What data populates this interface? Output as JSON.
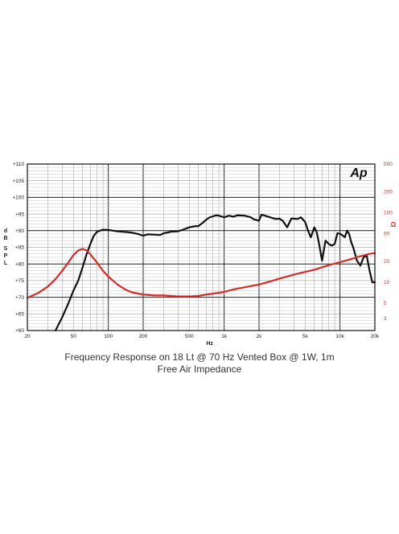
{
  "chart_data": {
    "type": "line",
    "logo": "Ap",
    "caption_line1": "Frequency Response on 18 Lt @ 70 Hz Vented Box @ 1W, 1m",
    "caption_line2": "Free Air Impedance",
    "xlabel": "Hz",
    "ylabel_left": "dB SPL",
    "ylabel_right": "Ω",
    "x_scale": "log",
    "xlim": [
      20,
      20000
    ],
    "ylim_left": [
      60,
      110
    ],
    "ylim_right": [
      2,
      500
    ],
    "y2_scale": "log",
    "grid": true,
    "x_ticks": [
      {
        "value": 20,
        "label": "20"
      },
      {
        "value": 50,
        "label": "50"
      },
      {
        "value": 100,
        "label": "100"
      },
      {
        "value": 200,
        "label": "200"
      },
      {
        "value": 500,
        "label": "500"
      },
      {
        "value": 1000,
        "label": "1k"
      },
      {
        "value": 2000,
        "label": "2k"
      },
      {
        "value": 5000,
        "label": "5k"
      },
      {
        "value": 10000,
        "label": "10k"
      },
      {
        "value": 20000,
        "label": "20k"
      }
    ],
    "y_ticks_left": [
      {
        "value": 110,
        "label": "+110"
      },
      {
        "value": 105,
        "label": "+105"
      },
      {
        "value": 100,
        "label": "+100"
      },
      {
        "value": 95,
        "label": "+95"
      },
      {
        "value": 90,
        "label": "+90"
      },
      {
        "value": 85,
        "label": "+85"
      },
      {
        "value": 80,
        "label": "+80"
      },
      {
        "value": 75,
        "label": "+75"
      },
      {
        "value": 70,
        "label": "+70"
      },
      {
        "value": 65,
        "label": "+65"
      },
      {
        "value": 60,
        "label": "+60"
      }
    ],
    "y_ticks_right": [
      {
        "value": 500,
        "label": "500"
      },
      {
        "value": 200,
        "label": "200"
      },
      {
        "value": 100,
        "label": "100"
      },
      {
        "value": 50,
        "label": "50"
      },
      {
        "value": 20,
        "label": "20"
      },
      {
        "value": 10,
        "label": "10"
      },
      {
        "value": 5,
        "label": "5"
      },
      {
        "value": 3,
        "label": "3"
      }
    ],
    "series": [
      {
        "axis": "left",
        "color": "#111111",
        "x": [
          35,
          40,
          45,
          50,
          55,
          60,
          65,
          70,
          75,
          80,
          90,
          100,
          110,
          120,
          140,
          160,
          180,
          200,
          220,
          250,
          280,
          300,
          350,
          400,
          450,
          500,
          550,
          600,
          650,
          700,
          750,
          800,
          850,
          900,
          1000,
          1100,
          1200,
          1300,
          1500,
          1700,
          1800,
          2000,
          2100,
          2200,
          2400,
          2600,
          2800,
          3000,
          3200,
          3500,
          3800,
          4000,
          4300,
          4600,
          5000,
          5300,
          5600,
          6000,
          6300,
          6600,
          7000,
          7500,
          8000,
          8500,
          9000,
          9500,
          10000,
          10500,
          11000,
          11500,
          12000,
          12500,
          13000,
          14000,
          15000,
          16000,
          17000,
          18000,
          19000,
          20000
        ],
        "y": [
          60,
          64,
          68,
          72,
          75,
          79,
          83,
          86,
          88.5,
          89.7,
          90.3,
          90.2,
          90.0,
          89.8,
          89.6,
          89.4,
          89.0,
          88.5,
          88.9,
          88.8,
          88.7,
          89.2,
          89.7,
          89.8,
          90.4,
          91.0,
          91.3,
          91.4,
          92.3,
          93.3,
          94.0,
          94.3,
          94.6,
          94.5,
          94.0,
          94.5,
          94.2,
          94.6,
          94.5,
          94.0,
          93.4,
          93.0,
          94.8,
          94.6,
          94.2,
          93.8,
          93.5,
          93.6,
          93.0,
          91.0,
          93.6,
          93.6,
          93.5,
          94.0,
          92.6,
          90.0,
          88.0,
          91.0,
          89.5,
          86.0,
          81.0,
          87.0,
          86.0,
          85.5,
          86.0,
          89.2,
          89.1,
          88.6,
          88.0,
          90.0,
          89.0,
          86.5,
          85.0,
          81.0,
          79.5,
          82.0,
          82.5,
          78.0,
          74.5,
          74.5
        ]
      },
      {
        "axis": "right",
        "color": "#d42b2b",
        "x": [
          20,
          25,
          30,
          35,
          40,
          45,
          50,
          55,
          60,
          65,
          70,
          80,
          90,
          100,
          120,
          140,
          160,
          200,
          250,
          300,
          400,
          500,
          600,
          700,
          800,
          1000,
          1200,
          1500,
          2000,
          2500,
          3000,
          4000,
          5000,
          6000,
          7000,
          8000,
          10000,
          12000,
          15000,
          18000,
          20000
        ],
        "y": [
          5.9,
          7.0,
          8.6,
          11.0,
          14.5,
          19.0,
          24.5,
          28.5,
          30.0,
          28.5,
          25.0,
          19.0,
          14.5,
          12.0,
          9.2,
          7.8,
          7.1,
          6.6,
          6.4,
          6.4,
          6.2,
          6.2,
          6.3,
          6.6,
          6.8,
          7.2,
          7.8,
          8.4,
          9.2,
          10.2,
          11.2,
          12.8,
          14.0,
          15.0,
          16.3,
          17.5,
          19.3,
          21.0,
          23.5,
          25.5,
          26.0
        ]
      }
    ]
  }
}
